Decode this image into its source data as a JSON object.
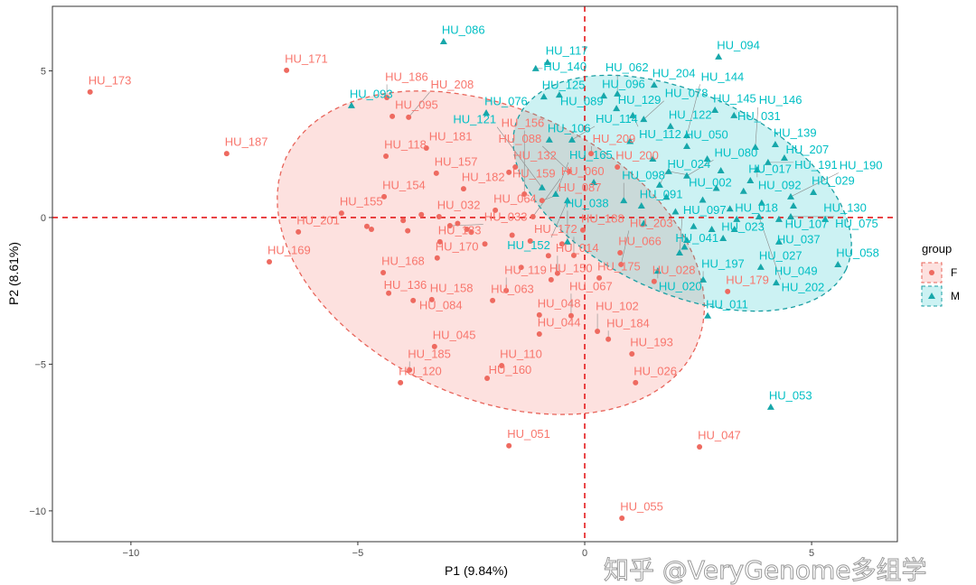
{
  "chart_data": {
    "type": "scatter",
    "xlabel": "P1 (9.84%)",
    "ylabel": "P2 (8.61%)",
    "xlim": [
      -11.73,
      6.89
    ],
    "ylim": [
      -11.05,
      7.2
    ],
    "xticks": [
      -10,
      -5,
      0,
      5
    ],
    "yticks": [
      -10,
      -5,
      0,
      5
    ],
    "grid": false,
    "reference_lines": {
      "x": 0,
      "y": 0,
      "style": "dashed",
      "color": "#E41A1C"
    },
    "legend": {
      "title": "group",
      "placement": "right",
      "entries": [
        "F",
        "M"
      ]
    },
    "colors": {
      "F": "#F8766D",
      "M": "#00BFC4"
    },
    "ellipses": [
      {
        "group": "F",
        "center": [
          -2.07,
          -1.2
        ],
        "axis_a": [
          4.51,
          -3.25
        ],
        "axis_b": [
          -1.35,
          -4.46
        ]
      },
      {
        "group": "M",
        "center": [
          2.15,
          0.83
        ],
        "axis_a": [
          3.61,
          -2.6
        ],
        "axis_b": [
          -0.93,
          -3.07
        ]
      }
    ],
    "series": [
      {
        "name": "F",
        "marker": "circle",
        "points": [
          [
            "HU_173",
            -10.9,
            4.28
          ],
          [
            "HU_171",
            -6.57,
            5.02
          ],
          [
            "HU_187",
            -7.89,
            2.18
          ],
          [
            "HU_169",
            -6.95,
            -1.51
          ],
          [
            "HU_201",
            -6.31,
            -0.49
          ],
          [
            "HU_186",
            -4.36,
            4.09
          ],
          [
            "HU_095",
            -4.24,
            3.45
          ],
          [
            "HU_208",
            -3.88,
            3.42
          ],
          [
            "HU_118",
            -4.38,
            2.09
          ],
          [
            "HU_181",
            -3.49,
            2.37
          ],
          [
            "HU_157",
            -3.27,
            1.51
          ],
          [
            "HU_182",
            -2.67,
            0.98
          ],
          [
            "HU_159",
            -1.67,
            1.54
          ],
          [
            "HU_154",
            -4.42,
            0.71
          ],
          [
            "HU_155",
            -5.36,
            0.15
          ],
          [
            "HU_032",
            -3.21,
            0.03
          ],
          [
            "HU_064",
            -1.97,
            0.25
          ],
          [
            "HU_033",
            -2.97,
            -0.28
          ],
          [
            "HU_183",
            -3.19,
            -0.83
          ],
          [
            "HU_168",
            -4.44,
            -1.88
          ],
          [
            "HU_170",
            -3.25,
            -1.38
          ],
          [
            "HU_136",
            -4.32,
            -2.58
          ],
          [
            "HU_084",
            -3.78,
            -2.83
          ],
          [
            "HU_158",
            -3.37,
            -2.8
          ],
          [
            "HU_045",
            -3.31,
            -4.4
          ],
          [
            "HU_185",
            -3.86,
            -5.2
          ],
          [
            "HU_120",
            -4.06,
            -5.63
          ],
          [
            "HU_110",
            -1.83,
            -5.05
          ],
          [
            "HU_160",
            -2.15,
            -5.48
          ],
          [
            "HU_051",
            -1.67,
            -7.78
          ],
          [
            "HU_055",
            0.82,
            -10.25
          ],
          [
            "HU_047",
            2.53,
            -7.82
          ],
          [
            "HU_026",
            1.12,
            -5.63
          ],
          [
            "HU_193",
            1.04,
            -4.65
          ],
          [
            "HU_184",
            0.52,
            -4.15
          ],
          [
            "HU_102",
            0.28,
            -3.88
          ],
          [
            "HU_044",
            -1.0,
            -3.97
          ],
          [
            "HU_048",
            -1.0,
            -3.32
          ],
          [
            "HU_067",
            -0.3,
            -3.35
          ],
          [
            "HU_063",
            -2.03,
            -2.83
          ],
          [
            "HU_119",
            -1.73,
            -2.49
          ],
          [
            "HU_150",
            -0.74,
            -2.12
          ],
          [
            "HU_175",
            0.32,
            -2.06
          ],
          [
            "HU_203",
            0.8,
            -1.6
          ],
          [
            "HU_028",
            1.53,
            -2.18
          ],
          [
            "HU_066",
            0.78,
            -1.2
          ],
          [
            "HU_179",
            3.15,
            -2.52
          ],
          [
            "HU_014",
            -0.6,
            -1.9
          ],
          [
            "HU_132",
            -1.53,
            1.72
          ],
          [
            "HU_088",
            -0.34,
            1.57
          ],
          [
            "HU_156",
            -1.33,
            0.8
          ],
          [
            "HU_087",
            -0.94,
            0.58
          ],
          [
            "HU_060",
            -1.14,
            0.03
          ],
          [
            "HU_209",
            0.14,
            2.18
          ],
          [
            "HU_200",
            0.72,
            1.72
          ],
          [
            "HU_172",
            -0.24,
            -1.29
          ],
          [
            "HU_188",
            -0.04,
            -0.43
          ],
          [
            null,
            -4.8,
            -0.3
          ],
          [
            null,
            -4.0,
            -0.1
          ],
          [
            null,
            -3.6,
            0.1
          ],
          [
            null,
            -2.5,
            -0.5
          ],
          [
            null,
            -2.2,
            -0.9
          ],
          [
            null,
            -1.6,
            -0.6
          ],
          [
            null,
            -1.2,
            -0.8
          ],
          [
            null,
            -0.8,
            -1.3
          ],
          [
            null,
            -2.8,
            -0.2
          ],
          [
            null,
            -4.7,
            -0.4
          ],
          [
            null,
            -1.4,
            -1.7
          ],
          [
            null,
            -0.5,
            -0.9
          ],
          [
            null,
            -2.6,
            -0.4
          ],
          [
            null,
            -3.9,
            -0.45
          ]
        ]
      },
      {
        "name": "M",
        "marker": "triangle",
        "points": [
          [
            "HU_086",
            -3.11,
            6.0
          ],
          [
            "HU_093",
            -5.14,
            3.82
          ],
          [
            "HU_076",
            -2.17,
            3.57
          ],
          [
            "HU_117",
            -0.82,
            5.29
          ],
          [
            "HU_140",
            -1.08,
            5.08
          ],
          [
            "HU_125",
            -0.9,
            4.12
          ],
          [
            "HU_089",
            -0.56,
            4.18
          ],
          [
            "HU_096",
            0.42,
            4.15
          ],
          [
            "HU_062",
            0.72,
            4.22
          ],
          [
            "HU_204",
            1.53,
            4.52
          ],
          [
            "HU_094",
            2.95,
            5.48
          ],
          [
            "HU_145",
            2.87,
            3.66
          ],
          [
            "HU_031",
            3.29,
            3.48
          ],
          [
            "HU_129",
            0.7,
            3.72
          ],
          [
            "HU_112",
            1.06,
            3.48
          ],
          [
            "HU_078",
            1.3,
            3.35
          ],
          [
            "HU_122",
            1.89,
            3.11
          ],
          [
            "HU_144",
            2.25,
            2.8
          ],
          [
            "HU_114",
            -0.28,
            2.65
          ],
          [
            "HU_106",
            -0.78,
            2.65
          ],
          [
            "HU_050",
            2.25,
            2.43
          ],
          [
            "HU_146",
            3.76,
            2.4
          ],
          [
            "HU_139",
            4.2,
            2.49
          ],
          [
            "HU_207",
            4.4,
            2.03
          ],
          [
            "HU_191",
            4.04,
            1.88
          ],
          [
            "HU_092",
            3.8,
            1.63
          ],
          [
            "HU_017",
            3.65,
            1.26
          ],
          [
            "HU_029",
            5.04,
            0.86
          ],
          [
            "HU_190",
            4.54,
            0.71
          ],
          [
            "HU_130",
            5.3,
            -0.06
          ],
          [
            "HU_107",
            4.28,
            -0.06
          ],
          [
            "HU_075",
            4.54,
            0.03
          ],
          [
            "HU_058",
            5.58,
            -1.6
          ],
          [
            "HU_037",
            4.28,
            -0.83
          ],
          [
            "HU_049",
            4.22,
            -2.22
          ],
          [
            "HU_027",
            3.88,
            -1.69
          ],
          [
            "HU_023",
            3.05,
            -0.71
          ],
          [
            "HU_197",
            2.61,
            -2.12
          ],
          [
            "HU_011",
            2.71,
            -3.35
          ],
          [
            "HU_053",
            4.1,
            -6.46
          ],
          [
            "HU_202",
            3.84,
            0.03
          ],
          [
            "HU_018",
            3.35,
            -0.06
          ],
          [
            "HU_097",
            2.09,
            -1.2
          ],
          [
            "HU_041",
            2.25,
            -0.77
          ],
          [
            "HU_020",
            1.61,
            -1.82
          ],
          [
            "HU_038",
            -0.38,
            -0.83
          ],
          [
            "HU_152",
            -0.38,
            0.58
          ],
          [
            "HU_121",
            -0.94,
            1.02
          ],
          [
            "HU_165",
            -0.64,
            0.8
          ],
          [
            "HU_024",
            1.65,
            1.11
          ],
          [
            "HU_091",
            1.25,
            0.4
          ],
          [
            "HU_098",
            0.86,
            0.58
          ],
          [
            "HU_002",
            1.85,
            1.57
          ],
          [
            "HU_080",
            2.25,
            1.42
          ],
          [
            null,
            2.6,
            0.6
          ],
          [
            null,
            2.9,
            1.0
          ],
          [
            null,
            3.2,
            0.3
          ],
          [
            null,
            3.5,
            0.9
          ],
          [
            null,
            2.4,
            -0.3
          ],
          [
            null,
            2.0,
            0.2
          ],
          [
            null,
            1.3,
            -0.2
          ],
          [
            null,
            3.0,
            1.6
          ],
          [
            null,
            2.7,
            2.0
          ],
          [
            null,
            1.5,
            2.0
          ],
          [
            null,
            1.0,
            2.6
          ],
          [
            null,
            3.9,
            0.5
          ],
          [
            null,
            2.2,
            -1.0
          ],
          [
            null,
            1.8,
            0.7
          ],
          [
            null,
            3.3,
            -0.4
          ],
          [
            null,
            0.2,
            1.2
          ],
          [
            null,
            4.6,
            0.4
          ],
          [
            null,
            2.8,
            -0.4
          ]
        ]
      }
    ]
  },
  "watermark": "知乎 @VeryGenome多组学"
}
